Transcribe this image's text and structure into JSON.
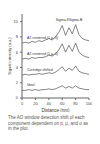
{
  "chart_data": {
    "type": "line",
    "x": [
      0,
      5,
      10,
      15,
      20,
      25,
      30,
      35,
      40,
      45,
      50,
      55,
      60,
      65,
      70,
      75,
      80,
      85,
      90,
      95,
      100
    ],
    "series": [
      {
        "name": "A1 centered (1 μ, 0)",
        "color": "#333333",
        "values": [
          7.2,
          7.3,
          7.2,
          7.4,
          7.3,
          7.5,
          7.4,
          7.6,
          7.8,
          7.6,
          8.0,
          8.6,
          9.5,
          8.2,
          9.2,
          8.4,
          9.6,
          8.3,
          7.8,
          7.6,
          7.5
        ]
      },
      {
        "name": "A2 centered (1 μ, 0)",
        "color": "#333333",
        "values": [
          5.1,
          5.2,
          5.1,
          5.3,
          5.2,
          5.3,
          5.3,
          5.4,
          5.6,
          5.5,
          5.8,
          6.3,
          7.1,
          6.0,
          6.9,
          6.1,
          7.2,
          6.0,
          5.6,
          5.4,
          5.3
        ]
      },
      {
        "name": "Cartridge shifted",
        "color": "#333333",
        "values": [
          3.0,
          3.1,
          3.0,
          3.1,
          3.1,
          3.2,
          3.1,
          3.2,
          3.3,
          3.2,
          3.4,
          3.7,
          4.1,
          3.5,
          3.9,
          3.6,
          4.2,
          3.5,
          3.3,
          3.2,
          3.1
        ]
      },
      {
        "name": "Ideal",
        "color": "#333333",
        "values": [
          1.0,
          1.0,
          1.1,
          1.0,
          1.1,
          1.0,
          1.1,
          1.1,
          1.2,
          1.1,
          1.2,
          1.4,
          1.6,
          1.3,
          1.5,
          1.3,
          1.6,
          1.3,
          1.2,
          1.1,
          1.1
        ]
      }
    ],
    "x_label": "Distance (nm)",
    "y_label": "Signal intensity (a.u.)",
    "xlim": [
      0,
      100
    ],
    "xticks": [
      0,
      20,
      40,
      60,
      80,
      100
    ],
    "ylim": [
      0,
      11
    ],
    "yticks": [
      0,
      2,
      4,
      6,
      8,
      10
    ],
    "annotations": [
      {
        "text": "Sigma-8",
        "x": 60,
        "y": 10.3
      },
      {
        "text": "Sigma-B",
        "x": 80,
        "y": 10.3
      }
    ],
    "caption": "The AO window detection shift of each component dependent on p, μ, and σ as in the plot."
  }
}
